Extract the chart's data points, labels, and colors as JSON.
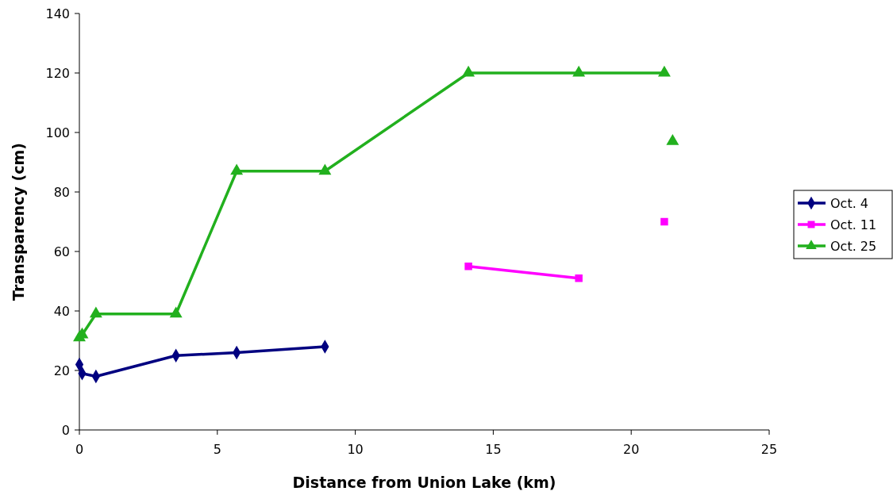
{
  "chart_data": {
    "type": "line",
    "xlabel": "Distance from Union Lake (km)",
    "ylabel": "Transparency (cm)",
    "xlim": [
      0,
      25
    ],
    "xticks": [
      0,
      5,
      10,
      15,
      20,
      25
    ],
    "ylim": [
      0,
      140
    ],
    "yticks": [
      0,
      20,
      40,
      60,
      80,
      100,
      120,
      140
    ],
    "grid": false,
    "legend": "right",
    "line_style": "solid",
    "series": [
      {
        "name": "Oct. 4",
        "color": "#000080",
        "marker": "diamond",
        "x": [
          0,
          0.1,
          0.6,
          3.5,
          5.7,
          8.9
        ],
        "values": [
          22,
          19,
          18,
          25,
          26,
          28
        ]
      },
      {
        "name": "Oct. 11",
        "color": "#ff00ff",
        "marker": "square",
        "x": [
          14.1,
          18.1,
          19.6,
          21.2
        ],
        "values": [
          55,
          51,
          null,
          70
        ]
      },
      {
        "name": "Oct. 25",
        "color": "#22b01e",
        "marker": "triangle",
        "x": [
          0,
          0.1,
          0.6,
          3.5,
          5.7,
          8.9,
          14.1,
          18.1,
          21.2,
          21.35,
          21.5
        ],
        "values": [
          31,
          32,
          39,
          39,
          87,
          87,
          120,
          120,
          120,
          null,
          97
        ]
      }
    ]
  }
}
